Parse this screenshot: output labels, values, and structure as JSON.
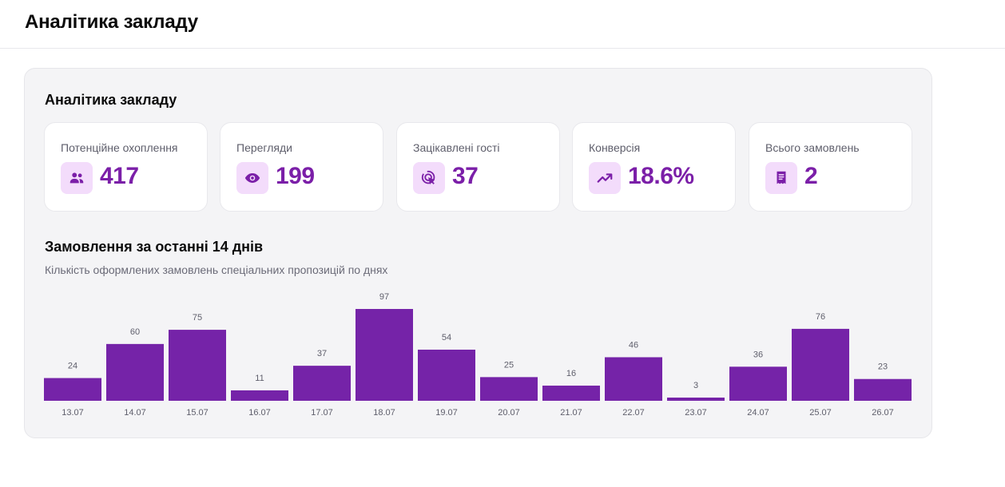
{
  "header": {
    "title": "Аналітика закладу"
  },
  "panel": {
    "title": "Аналітика закладу"
  },
  "stats": [
    {
      "label": "Потенційне охоплення",
      "value": "417",
      "icon": "users-icon"
    },
    {
      "label": "Перегляди",
      "value": "199",
      "icon": "eye-icon"
    },
    {
      "label": "Зацікавлені гості",
      "value": "37",
      "icon": "cursor-click-icon"
    },
    {
      "label": "Конверсія",
      "value": "18.6%",
      "icon": "trending-up-icon"
    },
    {
      "label": "Всього замовлень",
      "value": "2",
      "icon": "receipt-icon"
    }
  ],
  "chart": {
    "title": "Замовлення за останні 14 днів",
    "subtitle": "Кількість оформлених замовлень спеціальних пропозицій по днях"
  },
  "colors": {
    "accent": "#7523a8",
    "value_text": "#7b1fa8",
    "icon_bg": "#f3dcfb",
    "panel_bg": "#f4f4f6"
  },
  "chart_data": {
    "type": "bar",
    "categories": [
      "13.07",
      "14.07",
      "15.07",
      "16.07",
      "17.07",
      "18.07",
      "19.07",
      "20.07",
      "21.07",
      "22.07",
      "23.07",
      "24.07",
      "25.07",
      "26.07"
    ],
    "values": [
      24,
      60,
      75,
      11,
      37,
      97,
      54,
      25,
      16,
      46,
      3,
      36,
      76,
      23
    ],
    "data_labels": true,
    "grid": false,
    "legend": false
  }
}
